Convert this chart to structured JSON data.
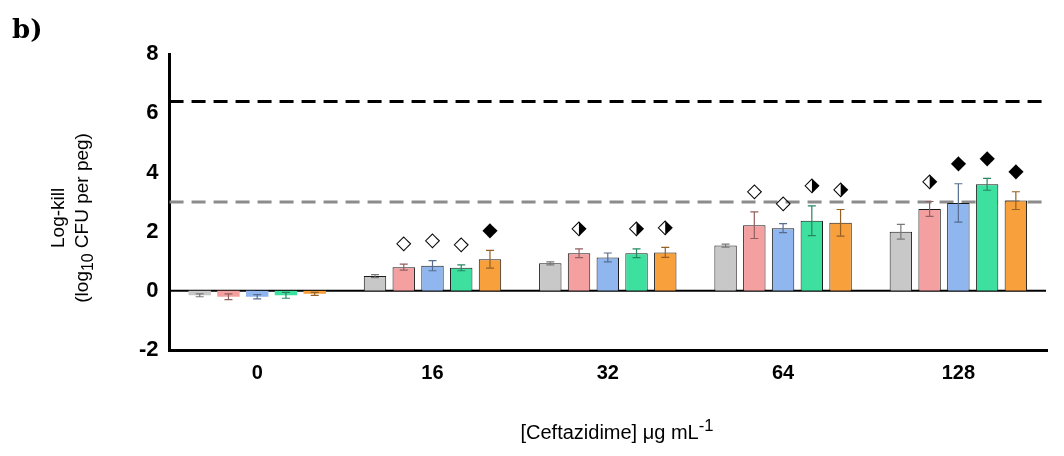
{
  "chart_data": {
    "type": "bar",
    "title": "b)",
    "xlabel": "[Ceftazidime] μg mL$^{-1}$",
    "ylabel": "Log-kill\n(log$_{10}$ CFU per peg)",
    "categories": [
      "0",
      "16",
      "32",
      "64",
      "128"
    ],
    "series": [
      {
        "color": "#c8c8c8",
        "values": [
          -0.15,
          0.5,
          0.93,
          1.53,
          2.0
        ],
        "errors": [
          0.05,
          0.05,
          0.05,
          0.05,
          0.25
        ]
      },
      {
        "color": "#f4a0a0",
        "values": [
          -0.2,
          0.8,
          1.27,
          2.22,
          2.77
        ],
        "errors": [
          0.1,
          0.1,
          0.15,
          0.45,
          0.25
        ],
        "value_labels": [
          null,
          "◇",
          "⬗",
          "◇",
          "⬗"
        ]
      },
      {
        "color": "#8fb6ee",
        "values": [
          -0.2,
          0.85,
          1.13,
          2.12,
          2.97
        ],
        "errors": [
          0.07,
          0.17,
          0.15,
          0.15,
          0.65
        ],
        "value_labels": [
          null,
          "◇",
          null,
          "◇",
          "◆"
        ]
      },
      {
        "color": "#3ee0a0",
        "values": [
          -0.15,
          0.78,
          1.27,
          2.37,
          3.6
        ],
        "errors": [
          0.1,
          0.1,
          0.15,
          0.5,
          0.2
        ],
        "value_labels": [
          null,
          "◇",
          "⬗",
          "⬗",
          "◆"
        ]
      },
      {
        "color": "#f7a03c",
        "values": [
          -0.1,
          1.07,
          1.3,
          2.3,
          3.05
        ],
        "errors": [
          0.05,
          0.3,
          0.17,
          0.45,
          0.3
        ],
        "value_labels": [
          null,
          "◆",
          "⬗",
          "⬗",
          "◆"
        ]
      }
    ],
    "ylim": [
      -2,
      8
    ],
    "yticks": [
      -2,
      0,
      2,
      4,
      6,
      8
    ],
    "ref_lines": [
      {
        "axis": "y",
        "value": 6.4,
        "color": "#000000",
        "line_style": "dashed"
      },
      {
        "axis": "y",
        "value": 3.0,
        "color": "#8c8c8c",
        "line_style": "dashed"
      }
    ]
  }
}
